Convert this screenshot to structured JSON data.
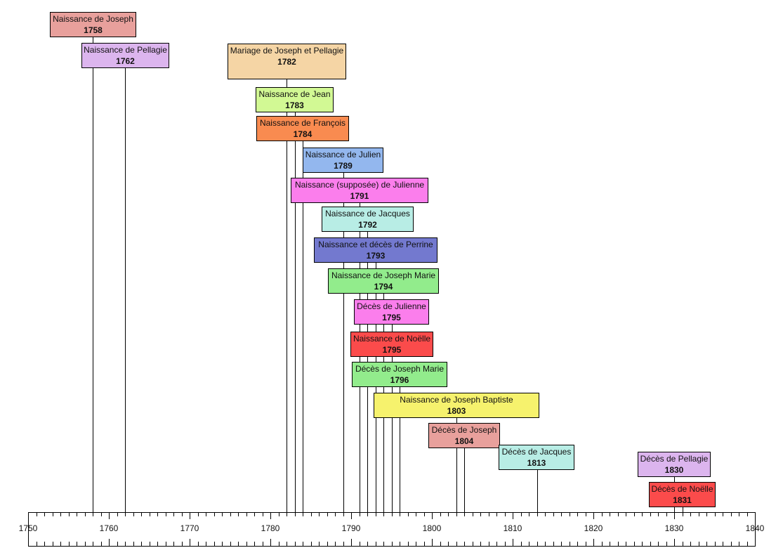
{
  "axis": {
    "start": 1750,
    "end": 1840,
    "major_step": 10,
    "minor_step": 1,
    "tick_labels": [
      "1750",
      "1760",
      "1770",
      "1780",
      "1790",
      "1800",
      "1810",
      "1820",
      "1830",
      "1840"
    ]
  },
  "events": [
    {
      "label": "Naissance de Joseph",
      "year": "1758",
      "color": "#e8a09c"
    },
    {
      "label": "Naissance de Pellagie",
      "year": "1762",
      "color": "#dcb5ee"
    },
    {
      "label": "Mariage de Joseph et Pellagie",
      "year": "1782",
      "color": "#f5d5a5"
    },
    {
      "label": "Naissance de Jean",
      "year": "1783",
      "color": "#d2f994"
    },
    {
      "label": "Naissance de François",
      "year": "1784",
      "color": "#f98b50"
    },
    {
      "label": "Naissance de Julien",
      "year": "1789",
      "color": "#93b7ee"
    },
    {
      "label": "Naissance (supposée) de Julienne",
      "year": "1791",
      "color": "#fb7eec"
    },
    {
      "label": "Naissance de Jacques",
      "year": "1792",
      "color": "#b8ede5"
    },
    {
      "label": "Naissance et décès de Perrine",
      "year": "1793",
      "color": "#7379cf"
    },
    {
      "label": "Naissance de Joseph Marie",
      "year": "1794",
      "color": "#92ec8c"
    },
    {
      "label": "Décès de Julienne",
      "year": "1795",
      "color": "#fb7eec"
    },
    {
      "label": "Naissance de Noëlle",
      "year": "1795",
      "color": "#fb4b4b"
    },
    {
      "label": "Décès de Joseph Marie",
      "year": "1796",
      "color": "#92ec8c"
    },
    {
      "label": "Naissance de Joseph Baptiste",
      "year": "1803",
      "color": "#f6f26d"
    },
    {
      "label": "Décès de Joseph",
      "year": "1804",
      "color": "#e8a09c"
    },
    {
      "label": "Décès de Jacques",
      "year": "1813",
      "color": "#b8ede5"
    },
    {
      "label": "Décès de Pellagie",
      "year": "1830",
      "color": "#dcb5ee"
    },
    {
      "label": "Décès de Noëlle",
      "year": "1831",
      "color": "#fb4b4b"
    }
  ]
}
